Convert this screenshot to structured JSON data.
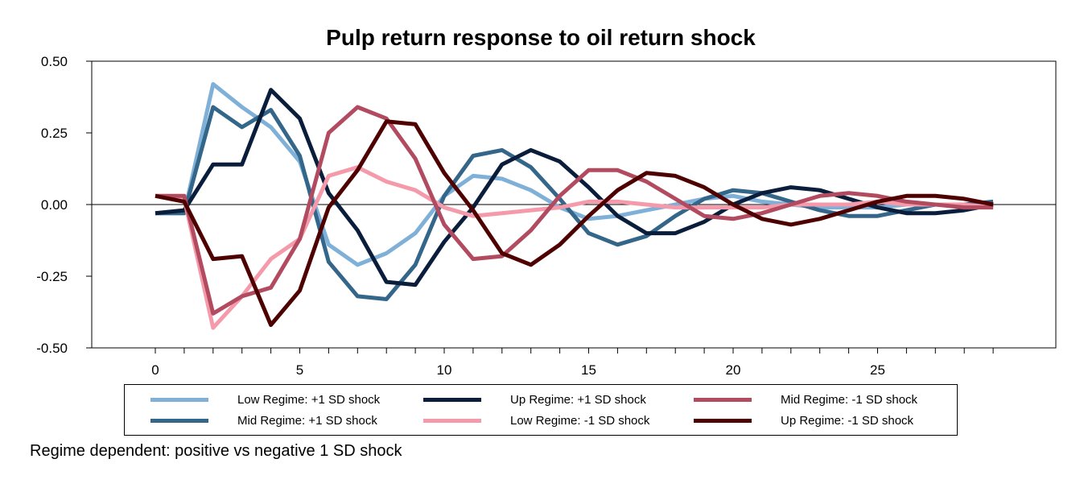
{
  "chart_data": {
    "type": "line",
    "title": "Pulp return response to oil return shock",
    "caption": "Regime dependent: positive vs negative 1 SD shock",
    "x": [
      0,
      1,
      2,
      3,
      4,
      5,
      6,
      7,
      8,
      9,
      10,
      11,
      12,
      13,
      14,
      15,
      16,
      17,
      18,
      19,
      20,
      21,
      22,
      23,
      24,
      25,
      26,
      27,
      28,
      29
    ],
    "xlim": [
      -2,
      31
    ],
    "ylim": [
      -0.5,
      0.5
    ],
    "x_ticks": [
      0,
      5,
      10,
      15,
      20,
      25
    ],
    "x_tick_labels": [
      "0",
      "5",
      "10",
      "15",
      "20",
      "25"
    ],
    "y_ticks": [
      0.5,
      0.25,
      0,
      -0.25,
      -0.5
    ],
    "y_tick_labels": [
      "0.50",
      "0.25",
      "0.00",
      "-0.25",
      "-0.50"
    ],
    "zero_line": true,
    "grid": false,
    "legend_position": "bottom",
    "series": [
      {
        "name": "Low Regime: +1 SD shock",
        "color": "#7FB0D8",
        "values": [
          -0.03,
          -0.03,
          0.42,
          0.34,
          0.27,
          0.15,
          -0.14,
          -0.21,
          -0.17,
          -0.1,
          0.03,
          0.1,
          0.09,
          0.05,
          -0.01,
          -0.05,
          -0.04,
          -0.02,
          0.0,
          0.02,
          0.03,
          0.01,
          0.0,
          -0.01,
          -0.01,
          -0.01,
          0.0,
          0.0,
          0.0,
          0.0
        ]
      },
      {
        "name": "Mid Regime: +1 SD shock",
        "color": "#34668A",
        "values": [
          -0.03,
          -0.03,
          0.34,
          0.27,
          0.33,
          0.17,
          -0.2,
          -0.32,
          -0.33,
          -0.21,
          0.03,
          0.17,
          0.19,
          0.13,
          0.02,
          -0.1,
          -0.14,
          -0.11,
          -0.04,
          0.02,
          0.05,
          0.04,
          0.01,
          -0.02,
          -0.04,
          -0.04,
          -0.02,
          0.0,
          0.0,
          0.01
        ]
      },
      {
        "name": "Up Regime: +1 SD shock",
        "color": "#0A1E3C",
        "values": [
          -0.03,
          -0.02,
          0.14,
          0.14,
          0.4,
          0.3,
          0.04,
          -0.09,
          -0.27,
          -0.28,
          -0.13,
          -0.01,
          0.14,
          0.19,
          0.15,
          0.06,
          -0.04,
          -0.1,
          -0.1,
          -0.06,
          0.0,
          0.04,
          0.06,
          0.05,
          0.02,
          -0.01,
          -0.03,
          -0.03,
          -0.02,
          0.0
        ]
      },
      {
        "name": "Low Regime: -1 SD shock",
        "color": "#F59AAA",
        "values": [
          0.03,
          0.02,
          -0.43,
          -0.32,
          -0.19,
          -0.12,
          0.1,
          0.13,
          0.08,
          0.05,
          -0.01,
          -0.04,
          -0.03,
          -0.02,
          -0.01,
          0.01,
          0.01,
          0.0,
          -0.01,
          -0.01,
          -0.01,
          -0.01,
          0.0,
          0.0,
          0.0,
          0.01,
          0.0,
          0.0,
          0.0,
          -0.01
        ]
      },
      {
        "name": "Mid Regime: -1 SD shock",
        "color": "#B24A60",
        "values": [
          0.03,
          0.03,
          -0.38,
          -0.32,
          -0.29,
          -0.12,
          0.25,
          0.34,
          0.3,
          0.16,
          -0.07,
          -0.19,
          -0.18,
          -0.09,
          0.03,
          0.12,
          0.12,
          0.08,
          0.02,
          -0.04,
          -0.05,
          -0.03,
          0.0,
          0.03,
          0.04,
          0.03,
          0.01,
          0.0,
          -0.01,
          -0.01
        ]
      },
      {
        "name": "Up Regime: -1 SD shock",
        "color": "#4E0000",
        "values": [
          0.03,
          0.01,
          -0.19,
          -0.18,
          -0.42,
          -0.3,
          -0.01,
          0.12,
          0.29,
          0.28,
          0.11,
          -0.02,
          -0.17,
          -0.21,
          -0.14,
          -0.04,
          0.05,
          0.11,
          0.1,
          0.06,
          0.0,
          -0.05,
          -0.07,
          -0.05,
          -0.02,
          0.01,
          0.03,
          0.03,
          0.02,
          0.0
        ]
      }
    ]
  }
}
